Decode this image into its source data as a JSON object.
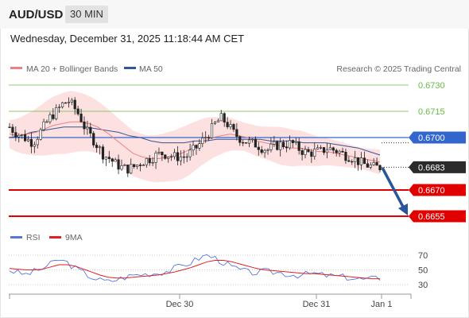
{
  "header": {
    "symbol": "AUD/USD",
    "timeframe": "30 MIN",
    "datetime": "Wednesday, December 31, 2025 11:18:44 AM CET"
  },
  "legend": {
    "ma20": "MA 20 + Bollinger Bands",
    "ma50": "MA 50",
    "credit": "Research © 2025 Trading Central"
  },
  "rsi_legend": {
    "rsi": "RSI",
    "ma": "9MA"
  },
  "colors": {
    "support": "#e00000",
    "resistance": "#66bb44",
    "pivot": "#3366cc",
    "ma20": "#f08080",
    "ma50": "#335599",
    "bands": "#fde0e0",
    "rsi": "#5577dd",
    "rsi_ma": "#dd2222",
    "arrow": "#2a5599"
  },
  "chart_data": [
    {
      "type": "candlestick",
      "ylim": [
        0.6649,
        0.6739
      ],
      "x_ticks": [
        "Dec 30",
        "Dec 31",
        "Jan 1"
      ],
      "levels": [
        {
          "value": "0.6730",
          "kind": "resistance"
        },
        {
          "value": "0.6715",
          "kind": "resistance"
        },
        {
          "value": "0.6700",
          "kind": "pivot"
        },
        {
          "value": "0.6670",
          "kind": "support"
        },
        {
          "value": "0.6655",
          "kind": "support"
        }
      ],
      "last_price": "0.6683",
      "close_path": [
        0.6706,
        0.6703,
        0.6701,
        0.6699,
        0.6697,
        0.6702,
        0.6707,
        0.6712,
        0.6715,
        0.6719,
        0.6721,
        0.6717,
        0.6712,
        0.6704,
        0.67,
        0.6695,
        0.669,
        0.6688,
        0.6685,
        0.6683,
        0.6682,
        0.6683,
        0.6685,
        0.6687,
        0.6688,
        0.669,
        0.6691,
        0.669,
        0.6689,
        0.6689,
        0.6689,
        0.6692,
        0.6695,
        0.6699,
        0.6703,
        0.6708,
        0.6711,
        0.6708,
        0.6703,
        0.67,
        0.6698,
        0.6697,
        0.6696,
        0.6694,
        0.6693,
        0.6695,
        0.6696,
        0.6696,
        0.6697,
        0.6694,
        0.6692,
        0.6691,
        0.6692,
        0.6692,
        0.6694,
        0.6693,
        0.6692,
        0.669,
        0.6689,
        0.6687,
        0.6685,
        0.6684,
        0.6683,
        0.6683
      ],
      "ma20_path": [
        0.6702,
        0.6701,
        0.6702,
        0.6703,
        0.6705,
        0.6707,
        0.6708,
        0.6709,
        0.6709,
        0.6708,
        0.6706,
        0.6703,
        0.6699,
        0.6695,
        0.6691,
        0.6689,
        0.6688,
        0.6688,
        0.6689,
        0.669,
        0.6692,
        0.6695,
        0.6698,
        0.67,
        0.6701,
        0.6702,
        0.6701,
        0.67,
        0.6698,
        0.6697,
        0.6696,
        0.6695,
        0.6694,
        0.6694,
        0.6693,
        0.6692,
        0.6692,
        0.6691,
        0.669,
        0.6689,
        0.6688,
        0.6687,
        0.6686
      ],
      "ma50_path": [
        0.67,
        0.6701,
        0.6703,
        0.6704,
        0.6705,
        0.6706,
        0.6706,
        0.6706,
        0.6705,
        0.6704,
        0.6703,
        0.6701,
        0.67,
        0.6698,
        0.6697,
        0.6697,
        0.6697,
        0.6698,
        0.6698,
        0.6699,
        0.6699,
        0.6699,
        0.6699,
        0.6699,
        0.6698,
        0.6698,
        0.6698,
        0.6697,
        0.6697,
        0.6697,
        0.6696,
        0.6695,
        0.6694,
        0.6692,
        0.669
      ],
      "band_spread": [
        0.0008,
        0.0012,
        0.0016,
        0.0018,
        0.0016,
        0.0014,
        0.0013,
        0.0013,
        0.0014,
        0.0015,
        0.0013,
        0.001,
        0.0008,
        0.0009,
        0.0011,
        0.001,
        0.0008,
        0.0007,
        0.0006,
        0.0007
      ]
    },
    {
      "type": "line",
      "title": "RSI",
      "ylim": [
        25,
        75
      ],
      "y_ticks": [
        "70",
        "50",
        "30"
      ],
      "rsi": [
        50,
        46,
        44,
        48,
        52,
        58,
        64,
        60,
        52,
        46,
        40,
        36,
        34,
        37,
        40,
        43,
        44,
        45,
        46,
        48,
        52,
        56,
        60,
        66,
        70,
        66,
        60,
        54,
        50,
        47,
        46,
        48,
        47,
        46,
        44,
        43,
        44,
        45,
        43,
        42,
        41,
        40,
        38,
        37,
        38,
        39
      ],
      "rsi_ma": [
        52,
        51,
        50,
        50,
        51,
        54,
        57,
        57,
        55,
        51,
        47,
        43,
        40,
        39,
        39,
        40,
        41,
        42,
        43,
        45,
        47,
        50,
        53,
        57,
        61,
        63,
        63,
        61,
        58,
        55,
        52,
        50,
        49,
        48,
        47,
        46,
        45,
        45,
        44,
        43,
        42,
        41,
        40,
        39,
        38,
        38
      ]
    }
  ]
}
